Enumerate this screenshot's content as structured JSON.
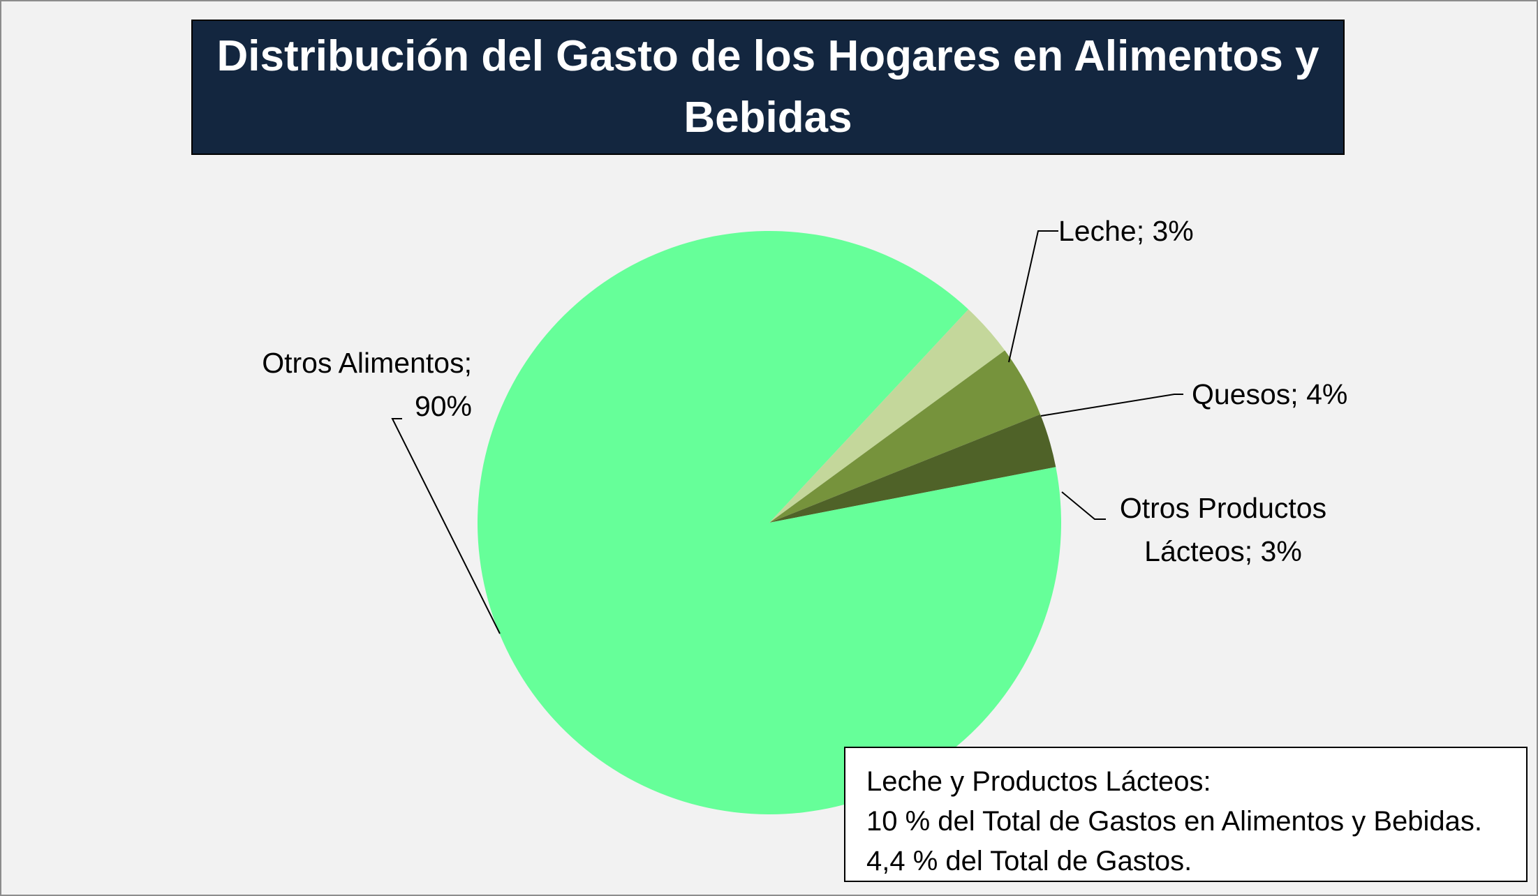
{
  "chart_data": {
    "type": "pie",
    "title": "Distribución del Gasto de los Hogares en Alimentos y Bebidas",
    "slices": [
      {
        "name": "Leche",
        "value": 3,
        "label": "Leche; 3%",
        "color": "#c4d79b"
      },
      {
        "name": "Quesos",
        "value": 4,
        "label": "Quesos; 4%",
        "color": "#76933c"
      },
      {
        "name": "Otros Productos Lácteos",
        "value": 3,
        "label_lines": [
          "Otros Productos",
          "Lácteos; 3%"
        ],
        "color": "#4f6228"
      },
      {
        "name": "Otros Alimentos",
        "value": 90,
        "label_lines": [
          "Otros Alimentos;",
          "90%"
        ],
        "color": "#66ff99"
      }
    ],
    "annotation": [
      "Leche y Productos Lácteos:",
      "10 % del Total de Gastos en Alimentos y Bebidas.",
      "4,4 % del Total de Gastos."
    ]
  }
}
